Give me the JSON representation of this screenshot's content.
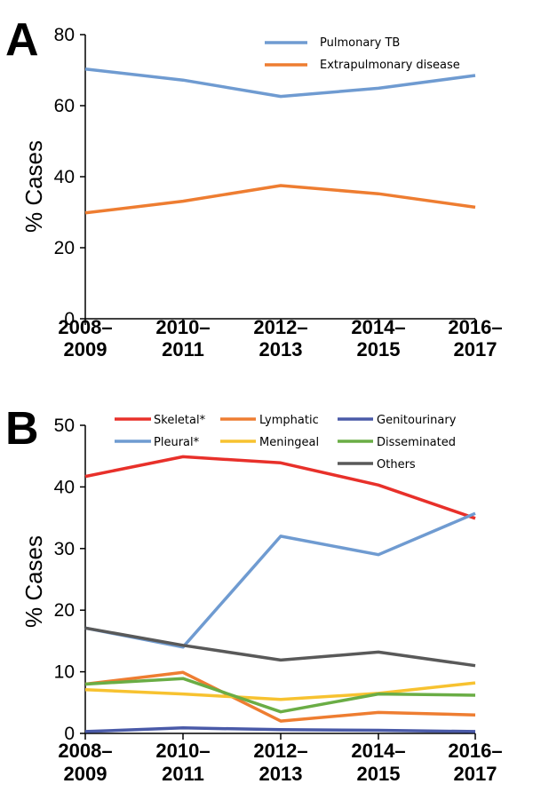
{
  "chart_data": [
    {
      "panel_label": "A",
      "type": "line",
      "ylabel": "% Cases",
      "ylim": [
        0,
        80
      ],
      "yticks": [
        0,
        20,
        40,
        60,
        80
      ],
      "categories": [
        [
          "2008–",
          "2009"
        ],
        [
          "2010–",
          "2011"
        ],
        [
          "2012–",
          "2013"
        ],
        [
          "2014–",
          "2015"
        ],
        [
          "2016–",
          "2017"
        ]
      ],
      "legend_position": "top-right",
      "series": [
        {
          "name": "Pulmonary TB",
          "color": "#6f9bd1",
          "values": [
            70.3,
            67.2,
            62.6,
            64.9,
            68.5
          ]
        },
        {
          "name": "Extrapulmonary disease",
          "color": "#ee7d31",
          "values": [
            29.8,
            33.1,
            37.5,
            35.2,
            31.4
          ]
        }
      ]
    },
    {
      "panel_label": "B",
      "type": "line",
      "ylabel": "% Cases",
      "ylim": [
        0,
        50
      ],
      "yticks": [
        0,
        10,
        20,
        30,
        40,
        50
      ],
      "categories": [
        [
          "2008–",
          "2009"
        ],
        [
          "2010–",
          "2011"
        ],
        [
          "2012–",
          "2013"
        ],
        [
          "2014–",
          "2015"
        ],
        [
          "2016–",
          "2017"
        ]
      ],
      "legend_position": "top",
      "series": [
        {
          "name": "Skeletal*",
          "color": "#e8302a",
          "values": [
            41.7,
            44.9,
            43.9,
            40.3,
            34.9
          ]
        },
        {
          "name": "Pleural*",
          "color": "#6f9bd1",
          "values": [
            17.1,
            14.0,
            32.0,
            29.0,
            35.7
          ]
        },
        {
          "name": "Lymphatic",
          "color": "#ee7d31",
          "values": [
            8.0,
            9.9,
            2.0,
            3.4,
            3.0
          ]
        },
        {
          "name": "Meningeal",
          "color": "#f7c230",
          "values": [
            7.1,
            6.4,
            5.5,
            6.5,
            8.2
          ]
        },
        {
          "name": "Genitourinary",
          "color": "#4a5aa8",
          "values": [
            0.3,
            0.9,
            0.6,
            0.5,
            0.3
          ]
        },
        {
          "name": "Disseminated",
          "color": "#6aad45",
          "values": [
            8.0,
            8.9,
            3.5,
            6.4,
            6.2
          ]
        },
        {
          "name": "Others",
          "color": "#595959",
          "values": [
            17.1,
            14.3,
            11.9,
            13.2,
            11.0
          ]
        }
      ]
    }
  ]
}
